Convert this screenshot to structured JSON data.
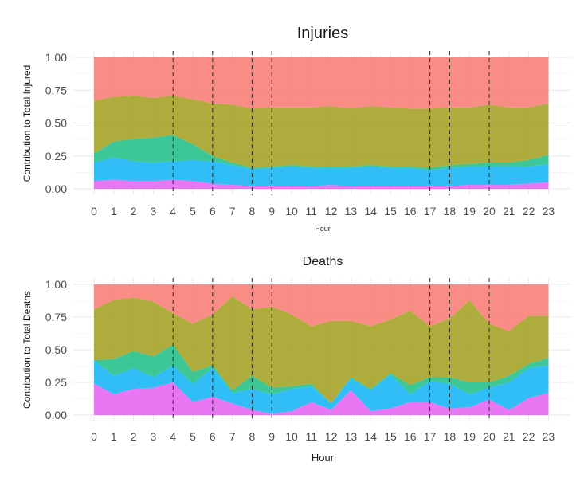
{
  "chart_data": [
    {
      "type": "area",
      "title": "Injuries",
      "xlabel": "Hour",
      "ylabel": "Contribution to Total Injured",
      "ylim": [
        0,
        1
      ],
      "yticks": [
        "0.00",
        "0.25",
        "0.50",
        "0.75",
        "1.00"
      ],
      "categories": [
        "0",
        "1",
        "2",
        "3",
        "4",
        "5",
        "6",
        "7",
        "8",
        "9",
        "10",
        "11",
        "12",
        "13",
        "14",
        "15",
        "16",
        "17",
        "18",
        "19",
        "20",
        "21",
        "22",
        "23"
      ],
      "reference_hours": [
        4,
        6,
        8,
        9,
        17,
        18,
        20
      ],
      "grid": true,
      "legend": "none",
      "stack_order_bottom_to_top": [
        "pink",
        "blue",
        "green",
        "olive",
        "red"
      ],
      "series": [
        {
          "color": "#E76BF3",
          "values": [
            0.06,
            0.07,
            0.06,
            0.06,
            0.07,
            0.06,
            0.04,
            0.03,
            0.02,
            0.02,
            0.02,
            0.02,
            0.03,
            0.02,
            0.02,
            0.02,
            0.02,
            0.02,
            0.02,
            0.03,
            0.03,
            0.03,
            0.04,
            0.05
          ]
        },
        {
          "color": "#1FB8F5",
          "values": [
            0.14,
            0.17,
            0.15,
            0.14,
            0.14,
            0.16,
            0.17,
            0.15,
            0.13,
            0.14,
            0.15,
            0.14,
            0.13,
            0.14,
            0.15,
            0.14,
            0.14,
            0.12,
            0.14,
            0.14,
            0.14,
            0.14,
            0.13,
            0.14
          ]
        },
        {
          "color": "#2DC28E",
          "values": [
            0.07,
            0.12,
            0.17,
            0.19,
            0.2,
            0.12,
            0.04,
            0.02,
            0.01,
            0.01,
            0.01,
            0.01,
            0.01,
            0.01,
            0.01,
            0.01,
            0.01,
            0.02,
            0.02,
            0.02,
            0.03,
            0.03,
            0.05,
            0.07
          ]
        },
        {
          "color": "#A8A52E",
          "values": [
            0.4,
            0.34,
            0.33,
            0.3,
            0.3,
            0.34,
            0.4,
            0.44,
            0.45,
            0.45,
            0.44,
            0.45,
            0.46,
            0.44,
            0.45,
            0.45,
            0.44,
            0.45,
            0.44,
            0.43,
            0.44,
            0.42,
            0.4,
            0.39
          ]
        },
        {
          "color": "#F8827B",
          "values": [
            0.33,
            0.3,
            0.29,
            0.31,
            0.29,
            0.32,
            0.35,
            0.36,
            0.39,
            0.38,
            0.38,
            0.38,
            0.37,
            0.39,
            0.37,
            0.38,
            0.39,
            0.39,
            0.38,
            0.38,
            0.36,
            0.38,
            0.38,
            0.35
          ]
        }
      ]
    },
    {
      "type": "area",
      "title": "Deaths",
      "xlabel": "Hour",
      "ylabel": "Contribution to Total Deaths",
      "ylim": [
        0,
        1
      ],
      "yticks": [
        "0.00",
        "0.25",
        "0.50",
        "0.75",
        "1.00"
      ],
      "categories": [
        "0",
        "1",
        "2",
        "3",
        "4",
        "5",
        "6",
        "7",
        "8",
        "9",
        "10",
        "11",
        "12",
        "13",
        "14",
        "15",
        "16",
        "17",
        "18",
        "19",
        "20",
        "21",
        "22",
        "23"
      ],
      "reference_hours": [
        4,
        6,
        8,
        9,
        17,
        18,
        20
      ],
      "grid": true,
      "legend": "none",
      "stack_order_bottom_to_top": [
        "pink",
        "blue",
        "green",
        "olive",
        "red"
      ],
      "series": [
        {
          "color": "#E76BF3",
          "values": [
            0.24,
            0.16,
            0.2,
            0.21,
            0.25,
            0.1,
            0.14,
            0.09,
            0.04,
            0.01,
            0.03,
            0.1,
            0.04,
            0.19,
            0.03,
            0.05,
            0.1,
            0.1,
            0.05,
            0.06,
            0.12,
            0.04,
            0.13,
            0.17
          ]
        },
        {
          "color": "#1FB8F5",
          "values": [
            0.18,
            0.14,
            0.16,
            0.08,
            0.13,
            0.14,
            0.22,
            0.08,
            0.16,
            0.15,
            0.17,
            0.12,
            0.05,
            0.09,
            0.16,
            0.26,
            0.06,
            0.16,
            0.19,
            0.1,
            0.09,
            0.21,
            0.23,
            0.21
          ]
        },
        {
          "color": "#2DC28E",
          "values": [
            0.0,
            0.13,
            0.13,
            0.16,
            0.16,
            0.09,
            0.02,
            0.02,
            0.1,
            0.05,
            0.02,
            0.02,
            0.0,
            0.01,
            0.01,
            0.01,
            0.07,
            0.03,
            0.05,
            0.09,
            0.04,
            0.05,
            0.03,
            0.06
          ]
        },
        {
          "color": "#A8A52E",
          "values": [
            0.39,
            0.45,
            0.41,
            0.42,
            0.24,
            0.37,
            0.39,
            0.72,
            0.51,
            0.62,
            0.55,
            0.44,
            0.63,
            0.43,
            0.48,
            0.41,
            0.57,
            0.39,
            0.45,
            0.63,
            0.45,
            0.34,
            0.37,
            0.32
          ]
        },
        {
          "color": "#F8827B",
          "values": [
            0.19,
            0.12,
            0.1,
            0.13,
            0.22,
            0.3,
            0.23,
            0.09,
            0.19,
            0.17,
            0.23,
            0.32,
            0.28,
            0.28,
            0.32,
            0.27,
            0.2,
            0.32,
            0.26,
            0.12,
            0.3,
            0.36,
            0.24,
            0.24
          ]
        }
      ]
    }
  ]
}
